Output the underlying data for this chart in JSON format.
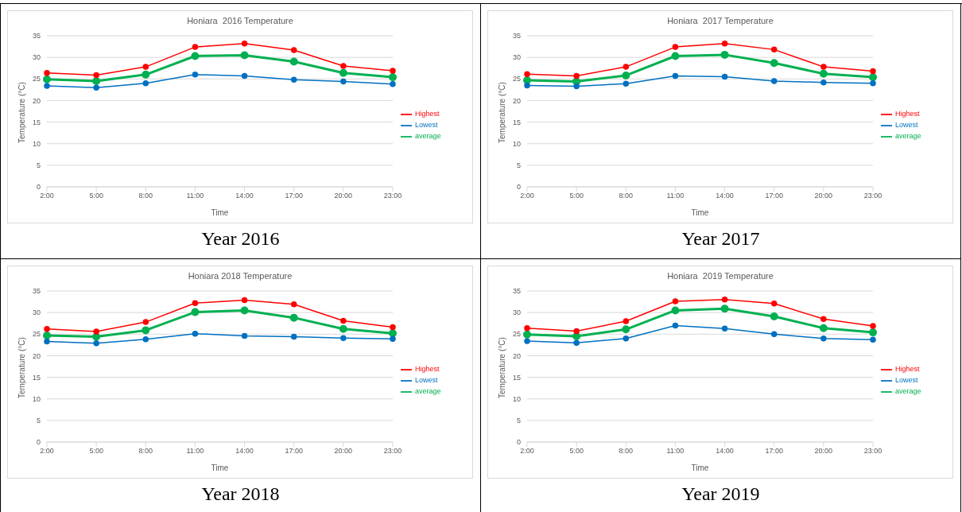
{
  "chart_data": [
    {
      "type": "line",
      "title": "Honiara  2016 Temperature",
      "xlabel": "Time",
      "ylabel": "Temperature (°C)",
      "categories": [
        "2:00",
        "5:00",
        "8:00",
        "11:00",
        "14:00",
        "17:00",
        "20:00",
        "23:00"
      ],
      "series": [
        {
          "name": "average",
          "color": "#00b050",
          "values": [
            24.9,
            24.5,
            26,
            30.3,
            30.5,
            29,
            26.4,
            25.4
          ]
        },
        {
          "name": "Lowest",
          "color": "#0070c0",
          "values": [
            23.4,
            23,
            24,
            26,
            25.7,
            24.8,
            24.4,
            23.8
          ]
        },
        {
          "name": "Highest",
          "color": "#ff0000",
          "values": [
            26.4,
            25.9,
            27.8,
            32.4,
            33.2,
            31.7,
            28,
            26.9
          ]
        }
      ],
      "ylim": [
        0,
        35
      ],
      "yticks": [
        0,
        5,
        10,
        15,
        20,
        25,
        30,
        35
      ],
      "grid": "y",
      "legend": "right",
      "marker": "circle",
      "annotations": [
        "Year 2016"
      ]
    },
    {
      "type": "line",
      "title": "Honiara  2017 Temperature",
      "xlabel": "Time",
      "ylabel": "Temperature (°C)",
      "categories": [
        "2:00",
        "5:00",
        "8:00",
        "11:00",
        "14:00",
        "17:00",
        "20:00",
        "23:00"
      ],
      "series": [
        {
          "name": "average",
          "color": "#00b050",
          "values": [
            24.7,
            24.4,
            25.8,
            30.3,
            30.6,
            28.7,
            26.2,
            25.4
          ]
        },
        {
          "name": "Lowest",
          "color": "#0070c0",
          "values": [
            23.5,
            23.3,
            23.9,
            25.7,
            25.5,
            24.5,
            24.2,
            24
          ]
        },
        {
          "name": "Highest",
          "color": "#ff0000",
          "values": [
            26.1,
            25.7,
            27.8,
            32.4,
            33.2,
            31.8,
            27.8,
            26.8
          ]
        }
      ],
      "ylim": [
        0,
        35
      ],
      "yticks": [
        0,
        5,
        10,
        15,
        20,
        25,
        30,
        35
      ],
      "grid": "y",
      "legend": "right",
      "marker": "circle",
      "annotations": [
        "Year 2017"
      ]
    },
    {
      "type": "line",
      "title": "Honiara 2018 Temperature",
      "xlabel": "Time",
      "ylabel": "Temperature (°C)",
      "categories": [
        "2:00",
        "5:00",
        "8:00",
        "11:00",
        "14:00",
        "17:00",
        "20:00",
        "23:00"
      ],
      "series": [
        {
          "name": "average",
          "color": "#00b050",
          "values": [
            24.7,
            24.4,
            25.9,
            30.1,
            30.5,
            28.8,
            26.2,
            25.2
          ]
        },
        {
          "name": "Lowest",
          "color": "#0070c0",
          "values": [
            23.3,
            22.9,
            23.8,
            25.1,
            24.6,
            24.4,
            24.1,
            23.9
          ]
        },
        {
          "name": "Highest",
          "color": "#ff0000",
          "values": [
            26.2,
            25.6,
            27.8,
            32.2,
            32.9,
            31.9,
            28.1,
            26.6
          ]
        }
      ],
      "ylim": [
        0,
        35
      ],
      "yticks": [
        0,
        5,
        10,
        15,
        20,
        25,
        30,
        35
      ],
      "grid": "y",
      "legend": "right",
      "marker": "circle",
      "annotations": [
        "Year 2018"
      ]
    },
    {
      "type": "line",
      "title": "Honiara  2019 Temperature",
      "xlabel": "Time",
      "ylabel": "Temperature (°C)",
      "categories": [
        "2:00",
        "5:00",
        "8:00",
        "11:00",
        "14:00",
        "17:00",
        "20:00",
        "23:00"
      ],
      "series": [
        {
          "name": "average",
          "color": "#00b050",
          "values": [
            24.9,
            24.5,
            26.1,
            30.5,
            30.9,
            29.1,
            26.4,
            25.4
          ]
        },
        {
          "name": "Lowest",
          "color": "#0070c0",
          "values": [
            23.4,
            23,
            24,
            27,
            26.3,
            25,
            24,
            23.7
          ]
        },
        {
          "name": "Highest",
          "color": "#ff0000",
          "values": [
            26.4,
            25.7,
            28,
            32.6,
            33,
            32.1,
            28.5,
            26.9
          ]
        }
      ],
      "ylim": [
        0,
        35
      ],
      "yticks": [
        0,
        5,
        10,
        15,
        20,
        25,
        30,
        35
      ],
      "grid": "y",
      "legend": "right",
      "marker": "circle",
      "annotations": [
        "Year 2019"
      ]
    }
  ]
}
